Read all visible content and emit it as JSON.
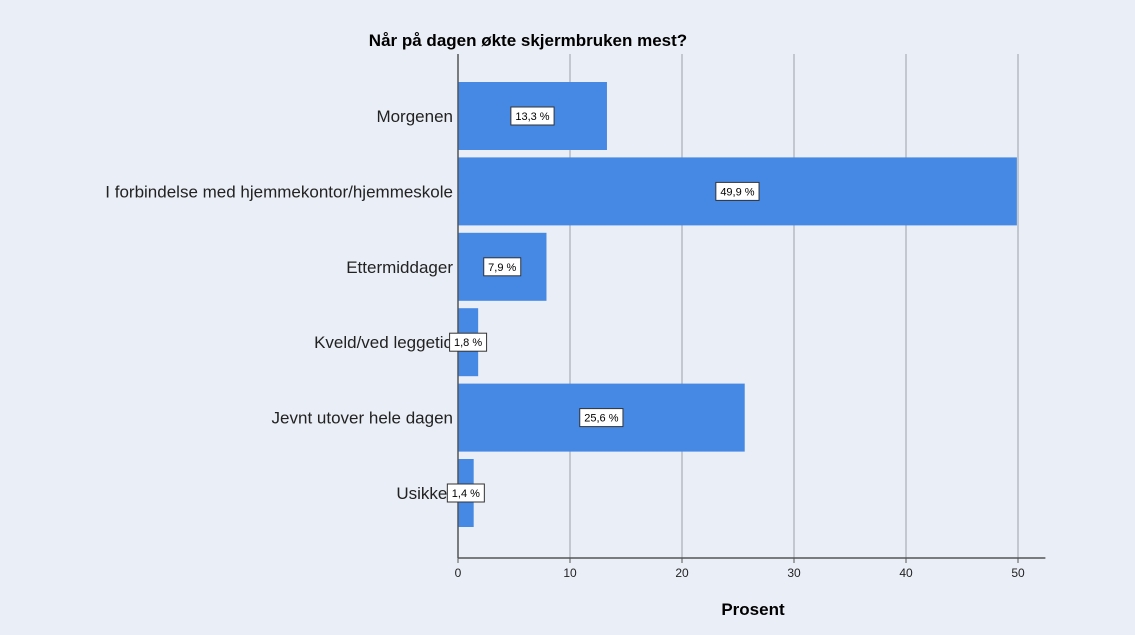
{
  "chart_data": {
    "type": "bar",
    "orientation": "horizontal",
    "title": "Når på dagen økte skjermbruken mest?",
    "xlabel": "Prosent",
    "ylabel": "",
    "xlim": [
      0,
      52
    ],
    "ticks": [
      0,
      10,
      20,
      30,
      40,
      50
    ],
    "grid": true,
    "categories": [
      "Morgenen",
      "I forbindelse med hjemmekontor/hjemmeskole",
      "Ettermiddager",
      "Kveld/ved leggetid",
      "Jevnt utover hele dagen",
      "Usikker"
    ],
    "values": [
      13.3,
      49.9,
      7.9,
      1.8,
      25.6,
      1.4
    ],
    "value_labels": [
      "13,3 %",
      "49,9 %",
      "7,9 %",
      "1,8 %",
      "25,6 %",
      "1,4 %"
    ],
    "bar_color": "#4689e5"
  }
}
